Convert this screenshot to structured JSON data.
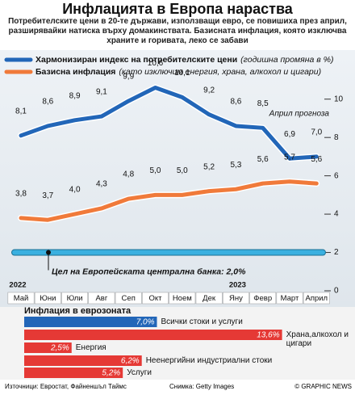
{
  "header": {
    "title": "Инфлацията в Европа нараства",
    "subtitle": "Потребителските цени в 20-те държави, използващи евро, се повишиха през април, разширявайки натиска върху домакинствата. Базисната инфлация, която изключва храните и горивата, леко се забави"
  },
  "chart_data": [
    {
      "type": "line",
      "categories": [
        "Май",
        "Юни",
        "Юли",
        "Авг",
        "Сеп",
        "Окт",
        "Ноем",
        "Дек",
        "Яну",
        "Февр",
        "Март",
        "Април"
      ],
      "year_labels": [
        "2022",
        "2023"
      ],
      "forecast_label": "Април прогноза",
      "series": [
        {
          "name": "Хармонизиран индекс на потребителските цени",
          "name_detail": "(годишна промяна в %)",
          "color": "#2266b8",
          "values": [
            8.1,
            8.6,
            8.9,
            9.1,
            9.9,
            10.6,
            10.1,
            9.2,
            8.6,
            8.5,
            6.9,
            7.0
          ],
          "value_labels": [
            "8,1",
            "8,6",
            "8,9",
            "9,1",
            "9,9",
            "10,6",
            "10,1",
            "9,2",
            "8,6",
            "8,5",
            "6,9",
            "7,0"
          ]
        },
        {
          "name": "Базисна инфлация",
          "name_detail": "(като изключим енергия, храна, алкохол и цигари)",
          "color": "#f07a3a",
          "values": [
            3.8,
            3.7,
            4.0,
            4.3,
            4.8,
            5.0,
            5.0,
            5.2,
            5.3,
            5.6,
            5.7,
            5.6
          ],
          "value_labels": [
            "3,8",
            "3,7",
            "4,0",
            "4,3",
            "4,8",
            "5,0",
            "5,0",
            "5,2",
            "5,3",
            "5,6",
            "5,7",
            "5,6"
          ]
        }
      ],
      "target": {
        "value": 2,
        "label": "Цел на Европейската централна банка: 2,0%",
        "color": "#3ab0e0"
      },
      "ylim": [
        0,
        11
      ],
      "yticks": [
        0,
        2,
        4,
        6,
        8,
        10
      ]
    },
    {
      "type": "bar",
      "title": "Инфлация в еврозоната",
      "categories": [
        "Всички стоки и услуги",
        "Храна,алкохол и цигари",
        "Енергия",
        "Неенергийни индустриални стоки",
        "Услуги"
      ],
      "values": [
        7.0,
        13.6,
        2.5,
        6.2,
        5.2
      ],
      "value_labels": [
        "7,0%",
        "13,6%",
        "2,5%",
        "6,2%",
        "5,2%"
      ],
      "colors": [
        "#2266b8",
        "#e53935",
        "#e53935",
        "#e53935",
        "#e53935"
      ]
    }
  ],
  "footer": {
    "source": "Източници: Евростат, Файненшъл Таймс",
    "photo": "Снимка: Getty Images",
    "credit": "© GRAPHIC NEWS"
  }
}
